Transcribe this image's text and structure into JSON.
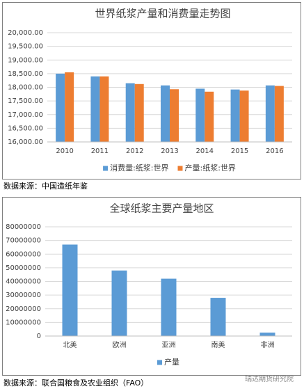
{
  "chart_data": [
    {
      "type": "bar",
      "title": "世界纸浆产量和消费量走势图",
      "categories": [
        "2010",
        "2011",
        "2012",
        "2013",
        "2014",
        "2015",
        "2016"
      ],
      "series": [
        {
          "name": "消费量:纸浆:世界",
          "color": "#5b9bd5",
          "values": [
            18500,
            18400,
            18150,
            18070,
            17950,
            17920,
            18070
          ]
        },
        {
          "name": "产量:纸浆:世界",
          "color": "#ed7d31",
          "values": [
            18550,
            18400,
            18120,
            17930,
            17840,
            17880,
            18050
          ]
        }
      ],
      "ylim": [
        16000,
        20000
      ],
      "yticks": [
        {
          "value": 16000,
          "label": "16,000.00"
        },
        {
          "value": 16500,
          "label": "16,500.00"
        },
        {
          "value": 17000,
          "label": "17,000.00"
        },
        {
          "value": 17500,
          "label": "17,500.00"
        },
        {
          "value": 18000,
          "label": "18,000.00"
        },
        {
          "value": 18500,
          "label": "18,500.00"
        },
        {
          "value": 19000,
          "label": "19,000.00"
        },
        {
          "value": 19500,
          "label": "19,500.00"
        },
        {
          "value": 20000,
          "label": "20,000.00"
        }
      ],
      "grid": true,
      "legend": "bottom",
      "source": "数据来源：中国造纸年鉴"
    },
    {
      "type": "bar",
      "title": "全球纸浆主要产量地区",
      "categories": [
        "北美",
        "欧洲",
        "亚洲",
        "南美",
        "非洲"
      ],
      "series": [
        {
          "name": "产量",
          "color": "#5b9bd5",
          "values": [
            67000000,
            48000000,
            42000000,
            28000000,
            2500000
          ]
        }
      ],
      "ylim": [
        0,
        80000000
      ],
      "yticks": [
        0,
        10000000,
        20000000,
        30000000,
        40000000,
        50000000,
        60000000,
        70000000,
        80000000
      ],
      "grid": true,
      "legend": "bottom",
      "source": "数据来源：联合国粮食及农业组织（FAO）"
    }
  ],
  "watermark": "瑞达期货研究院"
}
